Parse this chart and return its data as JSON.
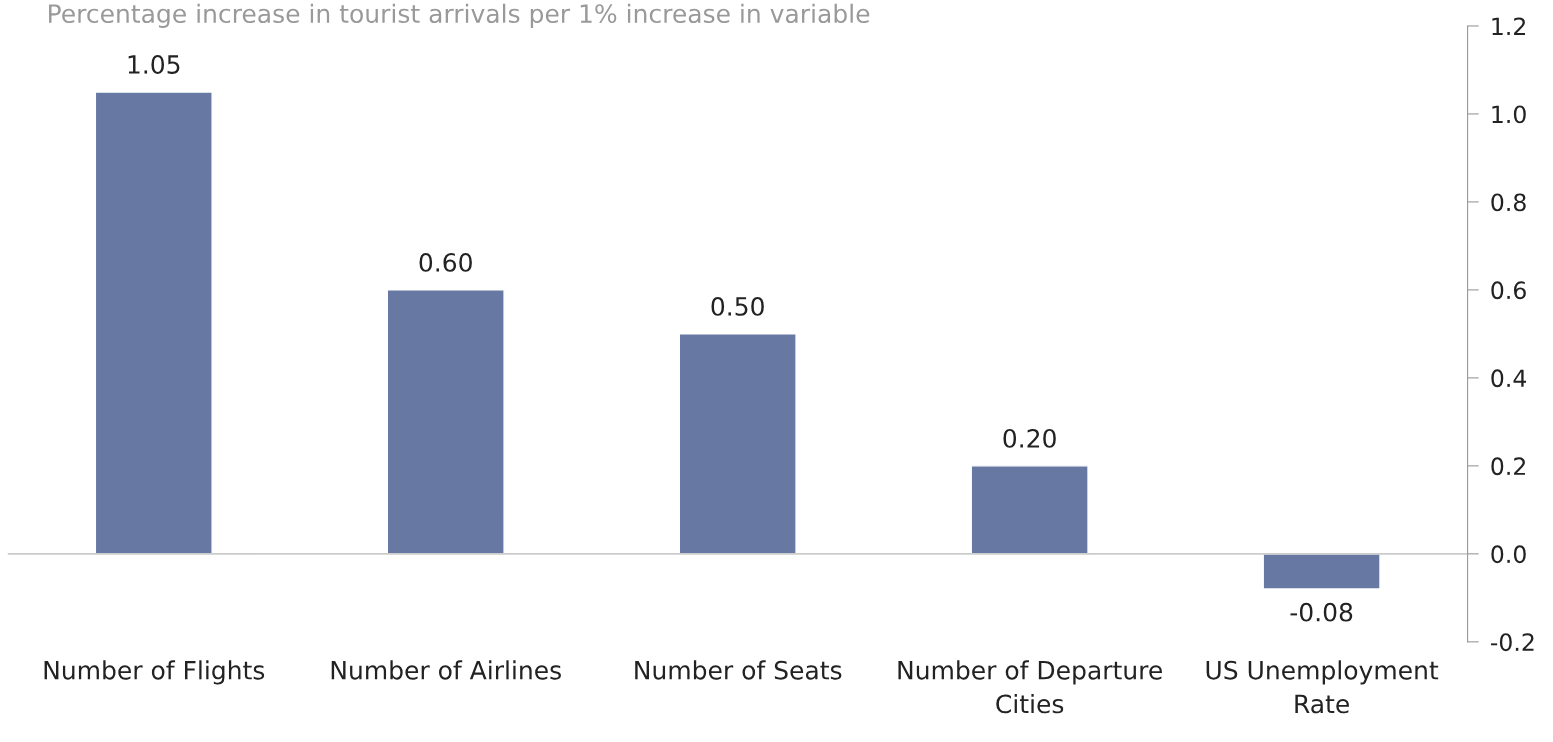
{
  "chart_data": {
    "type": "bar",
    "title": "Percentage increase in tourist arrivals per 1% increase in variable",
    "categories": [
      "Number of Flights",
      "Number of Airlines",
      "Number of Seats",
      "Number of Departure Cities",
      "US Unemployment Rate"
    ],
    "values": [
      1.05,
      0.6,
      0.5,
      0.2,
      -0.08
    ],
    "value_labels": [
      "1.05",
      "0.60",
      "0.50",
      "0.20",
      "-0.08"
    ],
    "color": "#6779a3",
    "ylim": [
      -0.2,
      1.2
    ],
    "yticks": [
      {
        "value": -0.2,
        "label": "-0.2"
      },
      {
        "value": 0.0,
        "label": "0.0"
      },
      {
        "value": 0.2,
        "label": "0.2"
      },
      {
        "value": 0.4,
        "label": "0.4"
      },
      {
        "value": 0.6,
        "label": "0.6"
      },
      {
        "value": 0.8,
        "label": "0.8"
      },
      {
        "value": 1.0,
        "label": "1.0"
      },
      {
        "value": 1.2,
        "label": "1.2"
      }
    ]
  }
}
